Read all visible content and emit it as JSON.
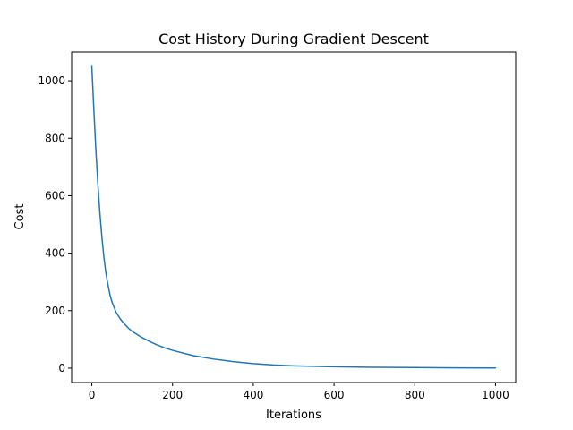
{
  "chart_data": {
    "type": "line",
    "title": "Cost History During Gradient Descent",
    "xlabel": "Iterations",
    "ylabel": "Cost",
    "xlim": [
      -50,
      1050
    ],
    "ylim": [
      -50,
      1100
    ],
    "xticks": [
      0,
      200,
      400,
      600,
      800,
      1000
    ],
    "yticks": [
      0,
      200,
      400,
      600,
      800,
      1000
    ],
    "grid": false,
    "series": [
      {
        "color": "#1f77b4",
        "x": [
          0,
          5,
          10,
          15,
          20,
          25,
          30,
          35,
          40,
          45,
          50,
          60,
          70,
          80,
          90,
          100,
          120,
          140,
          160,
          180,
          200,
          250,
          300,
          350,
          400,
          450,
          500,
          600,
          700,
          800,
          900,
          1000
        ],
        "y": [
          1050,
          900,
          760,
          640,
          540,
          455,
          385,
          330,
          290,
          255,
          230,
          195,
          172,
          155,
          140,
          128,
          110,
          95,
          82,
          71,
          62,
          44,
          32,
          23,
          16,
          11,
          8,
          5,
          3,
          2,
          1,
          0.5
        ]
      }
    ]
  }
}
